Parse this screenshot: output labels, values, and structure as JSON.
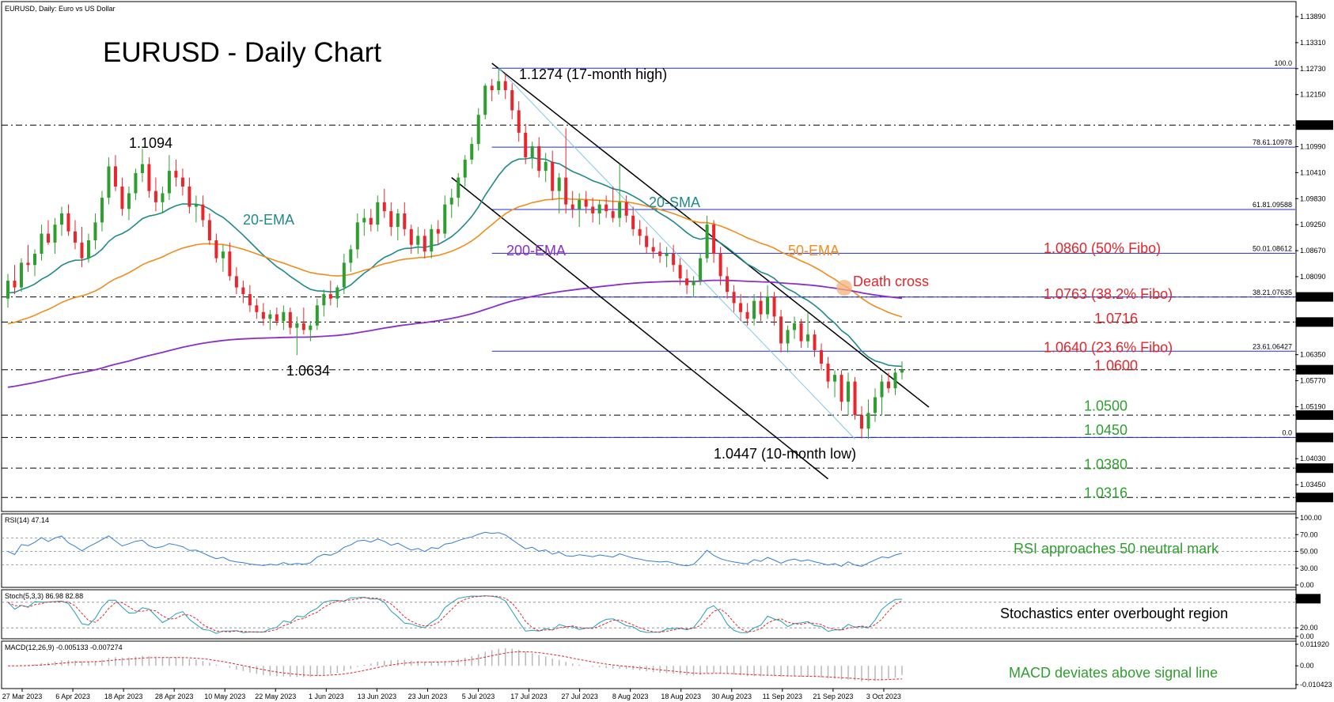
{
  "header": {
    "instrument": "EURUSD, Daily:  Euro vs US Dollar",
    "title": "EURUSD - Daily Chart"
  },
  "chart_data": {
    "type": "candlestick",
    "symbol": "EURUSD",
    "timeframe": "Daily",
    "ylim": [
      1.0287,
      1.1419
    ],
    "x_labels": [
      "27 Mar 2023",
      "6 Apr 2023",
      "18 Apr 2023",
      "28 Apr 2023",
      "10 May 2023",
      "22 May 2023",
      "1 Jun 2023",
      "13 Jun 2023",
      "23 Jun 2023",
      "5 Jul 2023",
      "17 Jul 2023",
      "27 Jul 2023",
      "8 Aug 2023",
      "18 Aug 2023",
      "30 Aug 2023",
      "11 Sep 2023",
      "21 Sep 2023",
      "3 Oct 2023"
    ],
    "y_ticks": [
      "1.13890",
      "1.13310",
      "1.12730",
      "1.12150",
      "1.11471",
      "1.10990",
      "1.10410",
      "1.09830",
      "1.09250",
      "1.08670",
      "1.08090",
      "1.07638",
      "1.07078",
      "1.06350",
      "1.06014",
      "1.05770",
      "1.05190",
      "1.05002",
      "1.04503",
      "1.04030",
      "1.03819",
      "1.03450",
      "1.03165"
    ],
    "highlighted_ticks": [
      "1.11471",
      "1.07638",
      "1.07078",
      "1.06014",
      "1.05002",
      "1.04503",
      "1.03819",
      "1.03165"
    ],
    "fibonacci": [
      {
        "label": "100.0",
        "price": 1.1274
      },
      {
        "label": "78.61.10978",
        "price": 1.10978
      },
      {
        "label": "61.81.09588",
        "price": 1.09588
      },
      {
        "label": "50.01.08612",
        "price": 1.08612
      },
      {
        "label": "38.21.07635",
        "price": 1.07635
      },
      {
        "label": "23.61.06427",
        "price": 1.06427
      },
      {
        "label": "0.0",
        "price": 1.04503
      }
    ],
    "horizontal_levels": [
      1.11471,
      1.07638,
      1.07078,
      1.06014,
      1.05002,
      1.04503,
      1.03819,
      1.03165
    ],
    "level_labels": [
      {
        "text": "1.0860 (50% Fibo)",
        "price": 1.0867,
        "color": "#e3262b"
      },
      {
        "text": "1.0763 (38.2% Fibo)",
        "price": 1.0765,
        "color": "#e3262b"
      },
      {
        "text": "1.0716",
        "price": 1.071,
        "color": "#e3262b"
      },
      {
        "text": "1.0640 (23.6% Fibo)",
        "price": 1.0646,
        "color": "#e3262b"
      },
      {
        "text": "1.0600",
        "price": 1.0605,
        "color": "#e3262b"
      },
      {
        "text": "1.0500",
        "price": 1.0515,
        "color": "#2f9e2f"
      },
      {
        "text": "1.0450",
        "price": 1.0462,
        "color": "#2f9e2f"
      },
      {
        "text": "1.0380",
        "price": 1.0385,
        "color": "#2f9e2f"
      },
      {
        "text": "1.0316",
        "price": 1.0321,
        "color": "#2f9e2f"
      }
    ],
    "annotations": [
      {
        "text": "1.1274 (17-month high)",
        "color": "#000000"
      },
      {
        "text": "1.1094",
        "color": "#000000"
      },
      {
        "text": "1.0634",
        "color": "#000000"
      },
      {
        "text": "1.0447 (10-month low)",
        "color": "#000000"
      },
      {
        "text": "20-EMA",
        "color": "#1f8a8a"
      },
      {
        "text": "20-SMA",
        "color": "#1f8a8a"
      },
      {
        "text": "50-EMA",
        "color": "#f28c1c"
      },
      {
        "text": "200-EMA",
        "color": "#8b2fc9"
      },
      {
        "text": "Death cross",
        "color": "#e3262b"
      }
    ],
    "series": [
      {
        "name": "20-EMA",
        "color": "#1f8a8a"
      },
      {
        "name": "50-EMA",
        "color": "#f28c1c"
      },
      {
        "name": "200-EMA",
        "color": "#8b2fc9"
      }
    ],
    "candles": [
      [
        1.076,
        1.0815,
        1.074,
        1.08
      ],
      [
        1.08,
        1.0835,
        1.077,
        1.0785
      ],
      [
        1.0785,
        1.085,
        1.0775,
        1.084
      ],
      [
        1.084,
        1.088,
        1.082,
        1.0835
      ],
      [
        1.0835,
        1.087,
        1.081,
        1.086
      ],
      [
        1.086,
        1.0925,
        1.0845,
        1.0905
      ],
      [
        1.0905,
        1.0935,
        1.088,
        1.0885
      ],
      [
        1.0885,
        1.094,
        1.086,
        1.0925
      ],
      [
        1.0925,
        1.0965,
        1.09,
        1.095
      ],
      [
        1.095,
        1.097,
        1.09,
        1.091
      ],
      [
        1.091,
        1.0935,
        1.087,
        1.0885
      ],
      [
        1.0885,
        1.092,
        1.083,
        1.085
      ],
      [
        1.085,
        1.0905,
        1.084,
        1.089
      ],
      [
        1.089,
        1.095,
        1.087,
        1.093
      ],
      [
        1.093,
        1.1,
        1.091,
        1.0985
      ],
      [
        1.0985,
        1.1075,
        1.097,
        1.1055
      ],
      [
        1.1055,
        1.108,
        1.1,
        1.101
      ],
      [
        1.101,
        1.103,
        1.0945,
        1.096
      ],
      [
        1.096,
        1.101,
        1.0935,
        1.0995
      ],
      [
        1.0995,
        1.105,
        1.098,
        1.104
      ],
      [
        1.104,
        1.1094,
        1.102,
        1.106
      ],
      [
        1.106,
        1.1075,
        1.0985,
        1.1
      ],
      [
        1.1,
        1.103,
        1.0955,
        1.0975
      ],
      [
        1.0975,
        1.101,
        1.095,
        1.0995
      ],
      [
        1.0995,
        1.108,
        1.098,
        1.1045
      ],
      [
        1.1045,
        1.107,
        1.101,
        1.103
      ],
      [
        1.103,
        1.105,
        1.099,
        1.101
      ],
      [
        1.101,
        1.103,
        1.095,
        1.0965
      ],
      [
        1.0965,
        1.099,
        1.093,
        1.097
      ],
      [
        1.097,
        1.099,
        1.092,
        1.0935
      ],
      [
        1.0935,
        1.095,
        1.088,
        1.089
      ],
      [
        1.089,
        1.0905,
        1.084,
        1.085
      ],
      [
        1.085,
        1.088,
        1.082,
        1.0865
      ],
      [
        1.0865,
        1.0885,
        1.08,
        1.081
      ],
      [
        1.081,
        1.083,
        1.077,
        1.0785
      ],
      [
        1.0785,
        1.08,
        1.075,
        1.077
      ],
      [
        1.077,
        1.079,
        1.073,
        1.0745
      ],
      [
        1.0745,
        1.076,
        1.0715,
        1.073
      ],
      [
        1.073,
        1.075,
        1.07,
        1.0715
      ],
      [
        1.0715,
        1.0735,
        1.069,
        1.0725
      ],
      [
        1.0725,
        1.074,
        1.07,
        1.071
      ],
      [
        1.071,
        1.0745,
        1.069,
        1.073
      ],
      [
        1.073,
        1.074,
        1.068,
        1.0695
      ],
      [
        1.0695,
        1.072,
        1.0634,
        1.0705
      ],
      [
        1.0705,
        1.074,
        1.068,
        1.069
      ],
      [
        1.069,
        1.071,
        1.0665,
        1.07
      ],
      [
        1.07,
        1.076,
        1.069,
        1.0745
      ],
      [
        1.0745,
        1.078,
        1.072,
        1.077
      ],
      [
        1.077,
        1.08,
        1.0745,
        1.076
      ],
      [
        1.076,
        1.079,
        1.074,
        1.0785
      ],
      [
        1.0785,
        1.086,
        1.077,
        1.084
      ],
      [
        1.084,
        1.088,
        1.082,
        1.087
      ],
      [
        1.087,
        1.095,
        1.085,
        1.093
      ],
      [
        1.093,
        1.096,
        1.09,
        1.094
      ],
      [
        1.094,
        1.096,
        1.091,
        1.0925
      ],
      [
        1.0925,
        1.099,
        1.091,
        1.0975
      ],
      [
        1.0975,
        1.1005,
        1.094,
        1.0955
      ],
      [
        1.0955,
        1.0975,
        1.09,
        1.092
      ],
      [
        1.092,
        1.096,
        1.089,
        1.095
      ],
      [
        1.095,
        1.0975,
        1.09,
        1.0915
      ],
      [
        1.0915,
        1.0925,
        1.086,
        1.088
      ],
      [
        1.088,
        1.092,
        1.086,
        1.09
      ],
      [
        1.09,
        1.0915,
        1.085,
        1.0865
      ],
      [
        1.0865,
        1.0925,
        1.085,
        1.0915
      ],
      [
        1.0915,
        1.0935,
        1.088,
        1.0905
      ],
      [
        1.0905,
        1.099,
        1.0895,
        1.097
      ],
      [
        1.097,
        1.1005,
        1.094,
        1.0985
      ],
      [
        1.0985,
        1.104,
        1.0965,
        1.103
      ],
      [
        1.103,
        1.108,
        1.101,
        1.107
      ],
      [
        1.107,
        1.112,
        1.106,
        1.1105
      ],
      [
        1.1105,
        1.1185,
        1.109,
        1.117
      ],
      [
        1.117,
        1.124,
        1.116,
        1.1235
      ],
      [
        1.1235,
        1.125,
        1.12,
        1.1225
      ],
      [
        1.1225,
        1.1274,
        1.1215,
        1.1245
      ],
      [
        1.1245,
        1.1262,
        1.1205,
        1.1225
      ],
      [
        1.1225,
        1.124,
        1.116,
        1.118
      ],
      [
        1.118,
        1.12,
        1.111,
        1.113
      ],
      [
        1.113,
        1.115,
        1.106,
        1.1075
      ],
      [
        1.1075,
        1.111,
        1.105,
        1.11
      ],
      [
        1.11,
        1.112,
        1.103,
        1.1045
      ],
      [
        1.1045,
        1.1085,
        1.102,
        1.1065
      ],
      [
        1.1065,
        1.109,
        1.098,
        1.1
      ],
      [
        1.1,
        1.104,
        1.095,
        1.103
      ],
      [
        1.103,
        1.114,
        1.095,
        1.097
      ],
      [
        1.097,
        1.1,
        1.094,
        1.096
      ],
      [
        1.096,
        1.0995,
        1.092,
        1.098
      ],
      [
        1.098,
        1.1,
        1.095,
        1.0965
      ],
      [
        1.0965,
        1.0985,
        1.093,
        1.095
      ],
      [
        1.095,
        1.098,
        1.0925,
        1.097
      ],
      [
        1.097,
        1.099,
        1.094,
        1.0955
      ],
      [
        1.0955,
        1.101,
        1.093,
        1.094
      ],
      [
        1.094,
        1.106,
        1.092,
        1.0975
      ],
      [
        1.0975,
        1.099,
        1.093,
        1.0945
      ],
      [
        1.0945,
        1.0965,
        1.09,
        1.0915
      ],
      [
        1.0915,
        1.0935,
        1.088,
        1.09
      ],
      [
        1.09,
        1.092,
        1.086,
        1.0875
      ],
      [
        1.0875,
        1.0895,
        1.085,
        1.0865
      ],
      [
        1.0865,
        1.0885,
        1.084,
        1.0855
      ],
      [
        1.0855,
        1.0875,
        1.083,
        1.086
      ],
      [
        1.086,
        1.088,
        1.082,
        1.0835
      ],
      [
        1.0835,
        1.085,
        1.079,
        1.0805
      ],
      [
        1.0805,
        1.0825,
        1.077,
        1.079
      ],
      [
        1.079,
        1.081,
        1.0765,
        1.08
      ],
      [
        1.08,
        1.086,
        1.079,
        1.085
      ],
      [
        1.085,
        1.0945,
        1.084,
        1.0925
      ],
      [
        1.0925,
        1.0935,
        1.084,
        1.086
      ],
      [
        1.086,
        1.0875,
        1.079,
        1.081
      ],
      [
        1.081,
        1.083,
        1.076,
        1.0775
      ],
      [
        1.0775,
        1.079,
        1.073,
        1.075
      ],
      [
        1.075,
        1.077,
        1.071,
        1.073
      ],
      [
        1.073,
        1.075,
        1.07,
        1.0715
      ],
      [
        1.0715,
        1.077,
        1.07,
        1.0755
      ],
      [
        1.0755,
        1.0775,
        1.071,
        1.0725
      ],
      [
        1.0725,
        1.079,
        1.0715,
        1.0765
      ],
      [
        1.0765,
        1.0775,
        1.07,
        1.072
      ],
      [
        1.072,
        1.0735,
        1.064,
        1.066
      ],
      [
        1.066,
        1.07,
        1.064,
        1.069
      ],
      [
        1.069,
        1.072,
        1.067,
        1.0705
      ],
      [
        1.0705,
        1.0715,
        1.065,
        1.0665
      ],
      [
        1.0665,
        1.073,
        1.065,
        1.068
      ],
      [
        1.068,
        1.069,
        1.063,
        1.0645
      ],
      [
        1.0645,
        1.066,
        1.06,
        1.0615
      ],
      [
        1.0615,
        1.063,
        1.056,
        1.0575
      ],
      [
        1.0575,
        1.06,
        1.054,
        1.059
      ],
      [
        1.059,
        1.06,
        1.051,
        1.053
      ],
      [
        1.053,
        1.0595,
        1.05,
        1.0575
      ],
      [
        1.0575,
        1.0585,
        1.049,
        1.05
      ],
      [
        1.05,
        1.052,
        1.0448,
        1.047
      ],
      [
        1.047,
        1.0535,
        1.0447,
        1.0505
      ],
      [
        1.0505,
        1.056,
        1.0485,
        1.054
      ],
      [
        1.054,
        1.059,
        1.05,
        1.0575
      ],
      [
        1.0575,
        1.0595,
        1.055,
        1.056
      ],
      [
        1.056,
        1.0605,
        1.0545,
        1.0595
      ],
      [
        1.0595,
        1.062,
        1.058,
        1.0601
      ]
    ]
  },
  "rsi": {
    "label": "RSI(14) 47.14",
    "ticks": [
      "100.00",
      "70.00",
      "50.00",
      "30.00",
      "0.00"
    ],
    "value": 47.14
  },
  "stoch": {
    "label": "Stoch(5,3,3) 86.98 82.88",
    "ticks": [
      "88.28",
      "20.00",
      "0.00"
    ],
    "main": 86.98,
    "signal": 82.88
  },
  "macd": {
    "label": "MACD(12,26,9) -0.005133 -0.007274",
    "ticks": [
      "0.011920",
      "0.00",
      "-0.010423"
    ],
    "main": -0.005133,
    "signal": -0.007274
  },
  "commentary": {
    "rsi": "RSI approaches 50 neutral mark",
    "stoch": "Stochastics enter overbought region",
    "macd": "MACD deviates above signal line"
  },
  "colors": {
    "bull": "#2e9e2e",
    "bear": "#e8262b",
    "grid": "#000000",
    "fibo": "#1e2bd8"
  }
}
